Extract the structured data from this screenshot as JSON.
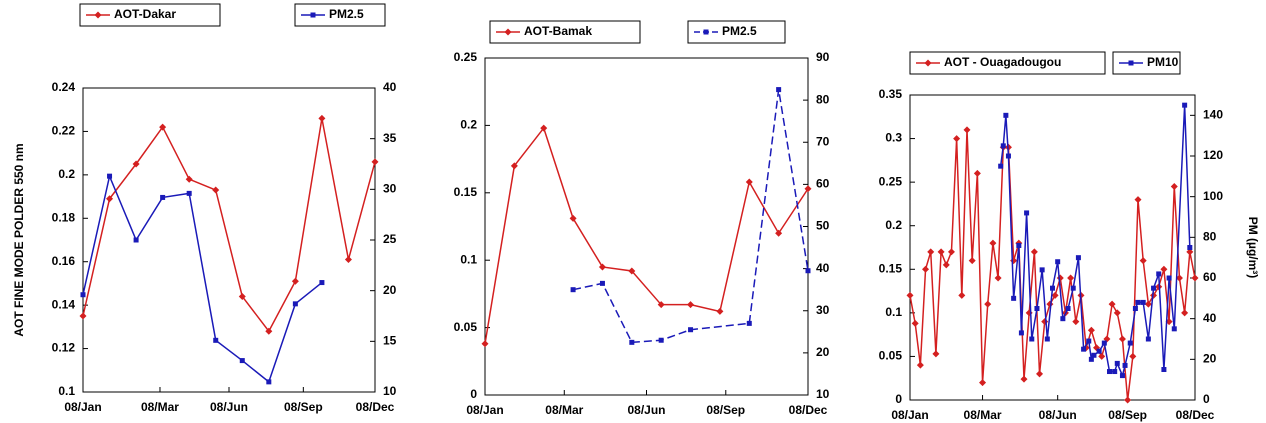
{
  "chart_data": [
    {
      "type": "line",
      "ylabel": "AOT FINE MODE POLDER 550 nm",
      "xlim": [
        0,
        11
      ],
      "xticks": [
        {
          "value": 0,
          "label": "08/Jan"
        },
        {
          "value": 2.9,
          "label": "08/Mar"
        },
        {
          "value": 5.5,
          "label": "08/Jun"
        },
        {
          "value": 8.3,
          "label": "08/Sep"
        },
        {
          "value": 11,
          "label": "08/Dec"
        }
      ],
      "ylim": [
        0.1,
        0.24
      ],
      "yticks": [
        0.1,
        0.12,
        0.14,
        0.16,
        0.18,
        0.2,
        0.22,
        0.24
      ],
      "y2lim": [
        10,
        40
      ],
      "y2ticks": [
        10,
        15,
        20,
        25,
        30,
        35,
        40
      ],
      "series": [
        {
          "name": "AOT-Dakar",
          "color": "#d42020",
          "marker": "diamond",
          "x": [
            0,
            1,
            2,
            3,
            4,
            5,
            6,
            7,
            8,
            9,
            10,
            11
          ],
          "values": [
            0.135,
            0.189,
            0.205,
            0.222,
            0.198,
            0.193,
            0.144,
            0.128,
            0.151,
            0.226,
            0.161,
            0.206
          ]
        },
        {
          "name": "PM2.5",
          "color": "#1a1ab8",
          "marker": "square",
          "axis": "y2",
          "x": [
            0,
            1,
            2,
            3,
            4,
            5,
            6,
            7,
            8,
            9
          ],
          "values": [
            19.6,
            31.3,
            25,
            29.2,
            29.6,
            15.1,
            13.1,
            11,
            18.7,
            20.8
          ]
        }
      ]
    },
    {
      "type": "line",
      "xlim": [
        0,
        11
      ],
      "xticks": [
        {
          "value": 0,
          "label": "08/Jan"
        },
        {
          "value": 2.7,
          "label": "08/Mar"
        },
        {
          "value": 5.5,
          "label": "08/Jun"
        },
        {
          "value": 8.2,
          "label": "08/Sep"
        },
        {
          "value": 11,
          "label": "08/Dec"
        }
      ],
      "ylim": [
        0,
        0.25
      ],
      "yticks": [
        0,
        0.05,
        0.1,
        0.15,
        0.2,
        0.25
      ],
      "y2lim": [
        10,
        90
      ],
      "y2ticks": [
        10,
        20,
        30,
        40,
        50,
        60,
        70,
        80,
        90
      ],
      "series": [
        {
          "name": "AOT-Bamak",
          "color": "#d42020",
          "marker": "diamond",
          "x": [
            0,
            1,
            2,
            3,
            4,
            5,
            6,
            7,
            8,
            9,
            10,
            11
          ],
          "values": [
            0.038,
            0.17,
            0.198,
            0.131,
            0.095,
            0.092,
            0.067,
            0.067,
            0.062,
            0.158,
            0.12,
            0.153
          ]
        },
        {
          "name": "PM2.5",
          "color": "#1a1ab8",
          "marker": "square",
          "axis": "y2",
          "line_style": "dashed",
          "x": [
            3,
            4,
            5,
            6,
            7,
            9,
            10,
            11
          ],
          "values": [
            35,
            36.5,
            22.5,
            23,
            25.5,
            27,
            82.5,
            39.5
          ]
        }
      ]
    },
    {
      "type": "line",
      "y2label": "PM (µg/m³)",
      "xlim": [
        0,
        11
      ],
      "xticks": [
        {
          "value": 0,
          "label": "08/Jan"
        },
        {
          "value": 2.8,
          "label": "08/Mar"
        },
        {
          "value": 5.7,
          "label": "08/Jun"
        },
        {
          "value": 8.4,
          "label": "08/Sep"
        },
        {
          "value": 11,
          "label": "08/Dec"
        }
      ],
      "ylim": [
        0,
        0.35
      ],
      "yticks": [
        0,
        0.05,
        0.1,
        0.15,
        0.2,
        0.25,
        0.3,
        0.35
      ],
      "y2lim": [
        0,
        150
      ],
      "y2ticks": [
        0,
        20,
        40,
        60,
        80,
        100,
        120,
        140
      ],
      "series": [
        {
          "name": "AOT - Ouagadougou",
          "color": "#d42020",
          "marker": "diamond",
          "x": [
            0,
            0.2,
            0.4,
            0.6,
            0.8,
            1,
            1.2,
            1.4,
            1.6,
            1.8,
            2,
            2.2,
            2.4,
            2.6,
            2.8,
            3,
            3.2,
            3.4,
            3.6,
            3.8,
            4,
            4.2,
            4.4,
            4.6,
            4.8,
            5,
            5.2,
            5.4,
            5.6,
            5.8,
            6,
            6.2,
            6.4,
            6.6,
            6.8,
            7,
            7.2,
            7.4,
            7.6,
            7.8,
            8,
            8.2,
            8.4,
            8.6,
            8.8,
            9,
            9.2,
            9.4,
            9.6,
            9.8,
            10,
            10.2,
            10.4,
            10.6,
            10.8,
            11
          ],
          "values": [
            0.12,
            0.088,
            0.04,
            0.15,
            0.17,
            0.053,
            0.17,
            0.155,
            0.17,
            0.3,
            0.12,
            0.31,
            0.16,
            0.26,
            0.02,
            0.11,
            0.18,
            0.14,
            0.29,
            0.29,
            0.16,
            0.18,
            0.024,
            0.1,
            0.17,
            0.03,
            0.09,
            0.11,
            0.12,
            0.14,
            0.1,
            0.14,
            0.09,
            0.12,
            0.06,
            0.08,
            0.06,
            0.05,
            0.07,
            0.11,
            0.1,
            0.07,
            0,
            0.05,
            0.23,
            0.16,
            0.11,
            0.12,
            0.13,
            0.15,
            0.09,
            0.245,
            0.14,
            0.1,
            0.17,
            0.14
          ]
        },
        {
          "name": "PM10",
          "color": "#1a1ab8",
          "marker": "square",
          "axis": "y2",
          "x": [
            3.5,
            3.6,
            3.7,
            3.8,
            4,
            4.2,
            4.3,
            4.5,
            4.7,
            4.9,
            5.1,
            5.3,
            5.5,
            5.7,
            5.9,
            6.1,
            6.3,
            6.5,
            6.7,
            6.9,
            7,
            7.1,
            7.3,
            7.5,
            7.7,
            7.9,
            8,
            8.2,
            8.3,
            8.5,
            8.7,
            8.8,
            9,
            9.2,
            9.4,
            9.6,
            9.8,
            10,
            10.2,
            10.6,
            10.8
          ],
          "values": [
            115,
            125,
            140,
            120,
            50,
            76,
            33,
            92,
            30,
            45,
            64,
            30,
            55,
            68,
            40,
            45,
            55,
            70,
            25,
            29,
            20,
            22,
            24,
            28,
            14,
            14,
            18,
            12,
            17,
            28,
            45,
            48,
            48,
            30,
            55,
            62,
            15,
            60,
            35,
            145,
            75
          ]
        }
      ]
    }
  ]
}
